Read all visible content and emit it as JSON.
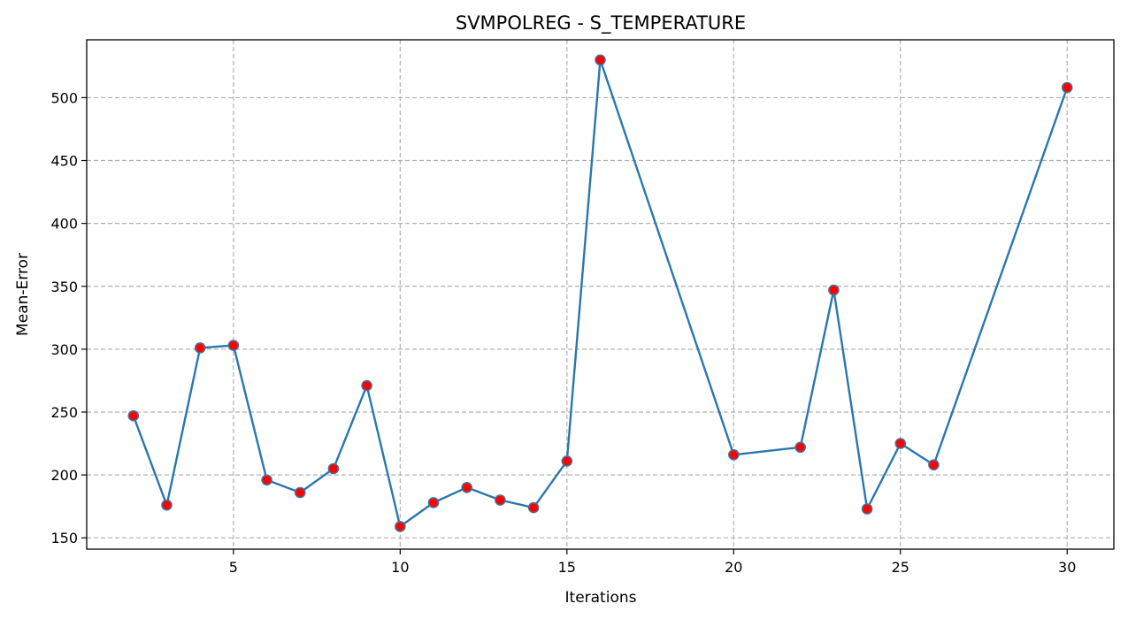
{
  "chart_data": {
    "type": "line",
    "title": "SVMPOLREG - S_TEMPERATURE",
    "xlabel": "Iterations",
    "ylabel": "Mean-Error",
    "xlim": [
      0.6,
      31.4
    ],
    "ylim": [
      141,
      546
    ],
    "xticks": [
      5,
      10,
      15,
      20,
      25,
      30
    ],
    "yticks": [
      150,
      200,
      250,
      300,
      350,
      400,
      450,
      500
    ],
    "grid": true,
    "series": [
      {
        "line_color": "#2a77ae",
        "marker_fill": "#ff0000",
        "marker_edge": "#4a6f9a",
        "points": [
          [
            2,
            247
          ],
          [
            3,
            176
          ],
          [
            4,
            301
          ],
          [
            5,
            303
          ],
          [
            6,
            196
          ],
          [
            7,
            186
          ],
          [
            8,
            205
          ],
          [
            9,
            271
          ],
          [
            10,
            159
          ],
          [
            11,
            178
          ],
          [
            12,
            190
          ],
          [
            13,
            180
          ],
          [
            14,
            174
          ],
          [
            15,
            211
          ],
          [
            16,
            530
          ],
          [
            20,
            216
          ],
          [
            22,
            222
          ],
          [
            23,
            347
          ],
          [
            24,
            173
          ],
          [
            25,
            225
          ],
          [
            26,
            208
          ],
          [
            30,
            508
          ]
        ]
      }
    ]
  }
}
